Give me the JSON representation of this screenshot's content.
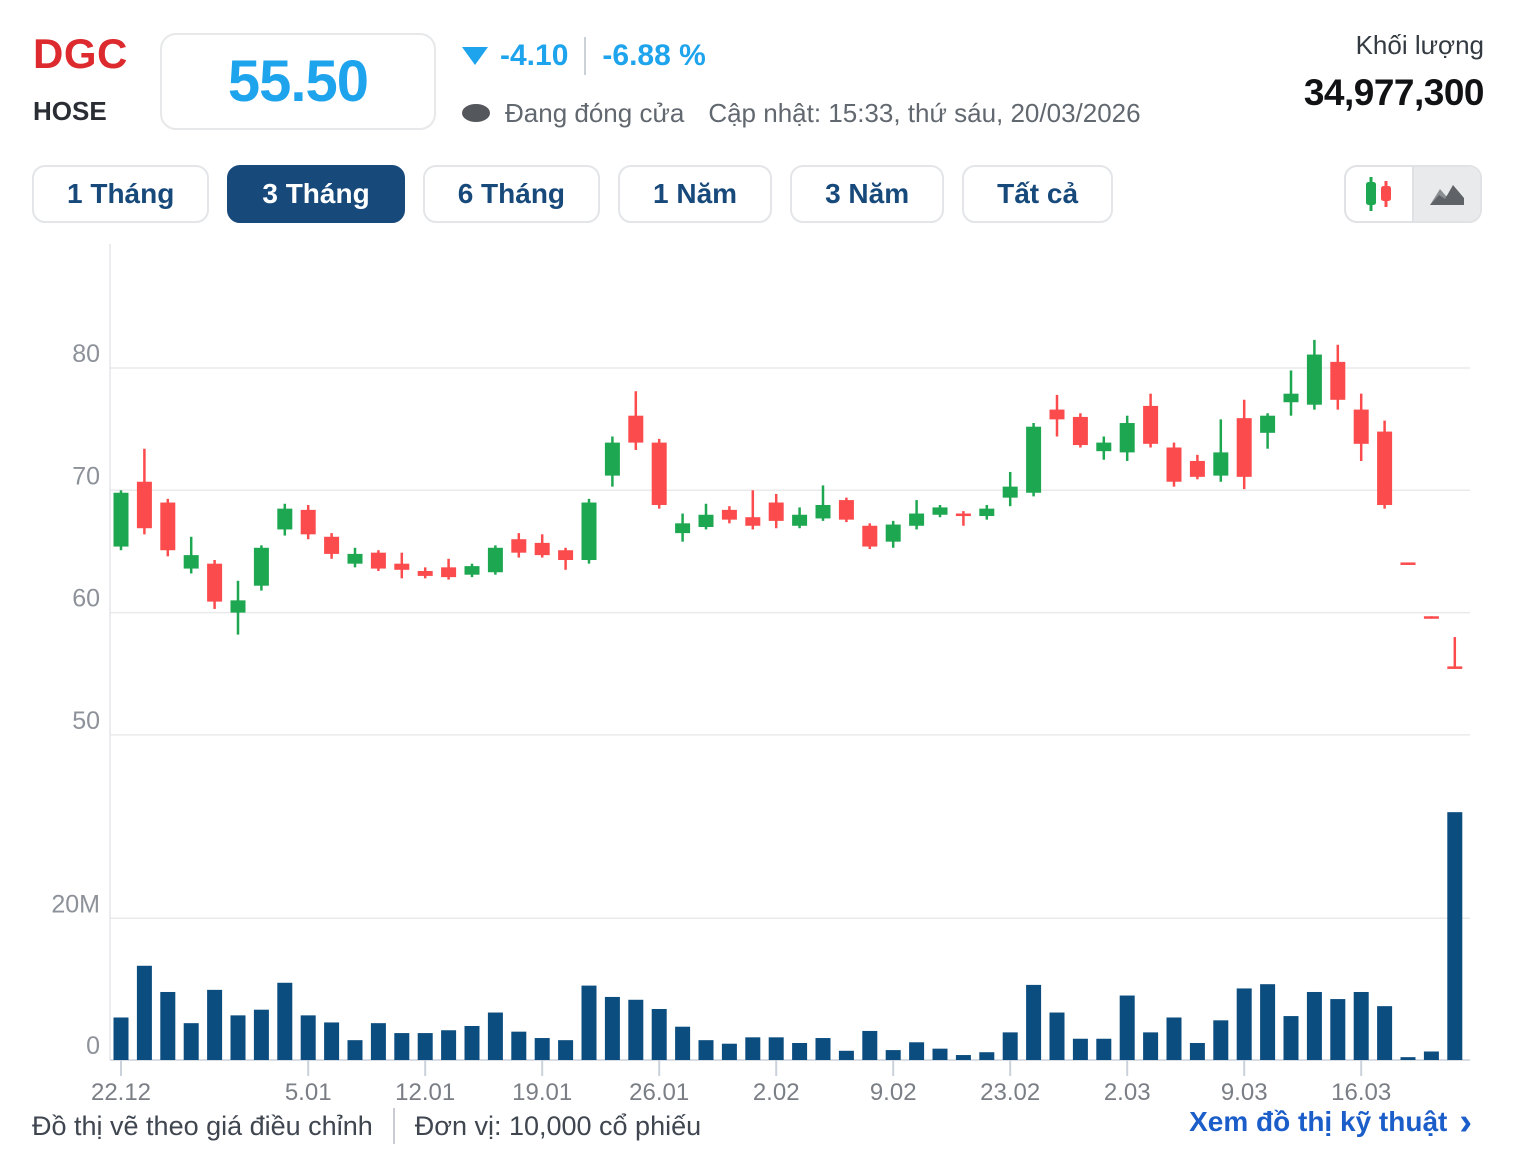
{
  "header": {
    "ticker": "DGC",
    "exchange": "HOSE",
    "price": "55.50",
    "change": "-4.10",
    "change_percent": "-6.88 %",
    "status": "Đang đóng cửa",
    "updated": "Cập nhật: 15:33, thứ sáu, 20/03/2026",
    "volume_label": "Khối lượng",
    "volume_value": "34,977,300"
  },
  "tabs": [
    {
      "label": "1 Tháng",
      "active": false
    },
    {
      "label": "3 Tháng",
      "active": true
    },
    {
      "label": "6 Tháng",
      "active": false
    },
    {
      "label": "1 Năm",
      "active": false
    },
    {
      "label": "3 Năm",
      "active": false
    },
    {
      "label": "Tất cả",
      "active": false
    }
  ],
  "chart_toggle": {
    "candlestick_selected": true,
    "area_selected": false
  },
  "footer": {
    "note": "Đồ thị vẽ theo giá điều chỉnh",
    "unit": "Đơn vị: 10,000 cổ phiếu",
    "link": "Xem đồ thị kỹ thuật",
    "chevron": "›"
  },
  "colors": {
    "ticker_red": "#dd2a2e",
    "price_blue": "#1ea3ed",
    "tab_navy": "#17497b",
    "candle_up": "#1da750",
    "candle_down": "#fb4b4c",
    "volume_bar": "#0c4d7f",
    "gridline": "#eaeaea",
    "axis_line": "#d7dce5",
    "tick_line": "#cbd1db",
    "y_label": "#8d9199",
    "x_label": "#7a7e85",
    "link_blue": "#1c5ec9"
  },
  "chart_data": {
    "type": "candlestick+volume",
    "price_axis": {
      "ticks": [
        80,
        70,
        60,
        50
      ],
      "range_note": "gridlines at 80/70/60/50"
    },
    "volume_axis": {
      "ticks_labels": [
        "20M",
        "0"
      ],
      "ticks_values": [
        20000000,
        0
      ]
    },
    "volume_unit_millions": true,
    "x_tick_labels": [
      {
        "index": 0,
        "label": "22.12"
      },
      {
        "index": 8,
        "label": "5.01"
      },
      {
        "index": 13,
        "label": "12.01"
      },
      {
        "index": 18,
        "label": "19.01"
      },
      {
        "index": 23,
        "label": "26.01"
      },
      {
        "index": 28,
        "label": "2.02"
      },
      {
        "index": 33,
        "label": "9.02"
      },
      {
        "index": 38,
        "label": "23.02"
      },
      {
        "index": 43,
        "label": "2.03"
      },
      {
        "index": 48,
        "label": "9.03"
      },
      {
        "index": 53,
        "label": "16.03"
      }
    ],
    "candles": [
      {
        "d": "22.12",
        "o": 65.4,
        "h": 70.0,
        "l": 65.1,
        "c": 69.8,
        "v": 6.0
      },
      {
        "d": "23.12",
        "o": 70.7,
        "h": 73.4,
        "l": 66.4,
        "c": 66.9,
        "v": 13.3
      },
      {
        "d": "24.12",
        "o": 69.0,
        "h": 69.3,
        "l": 64.6,
        "c": 65.1,
        "v": 9.6
      },
      {
        "d": "25.12",
        "o": 63.6,
        "h": 66.2,
        "l": 63.2,
        "c": 64.7,
        "v": 5.2
      },
      {
        "d": "26.12",
        "o": 64.0,
        "h": 64.3,
        "l": 60.3,
        "c": 60.9,
        "v": 9.9
      },
      {
        "d": "29.12",
        "o": 60.0,
        "h": 62.6,
        "l": 58.2,
        "c": 61.0,
        "v": 6.3
      },
      {
        "d": "30.12",
        "o": 62.2,
        "h": 65.5,
        "l": 61.8,
        "c": 65.3,
        "v": 7.1
      },
      {
        "d": "31.12",
        "o": 66.8,
        "h": 68.9,
        "l": 66.3,
        "c": 68.5,
        "v": 10.9
      },
      {
        "d": "5.01",
        "o": 68.4,
        "h": 68.8,
        "l": 66.0,
        "c": 66.4,
        "v": 6.3
      },
      {
        "d": "6.01",
        "o": 66.2,
        "h": 66.5,
        "l": 64.4,
        "c": 64.8,
        "v": 5.3
      },
      {
        "d": "7.01",
        "o": 64.0,
        "h": 65.3,
        "l": 63.7,
        "c": 64.8,
        "v": 2.8
      },
      {
        "d": "8.01",
        "o": 64.9,
        "h": 65.1,
        "l": 63.4,
        "c": 63.6,
        "v": 5.2
      },
      {
        "d": "9.01",
        "o": 64.0,
        "h": 64.9,
        "l": 62.8,
        "c": 63.5,
        "v": 3.8
      },
      {
        "d": "12.01",
        "o": 63.4,
        "h": 63.7,
        "l": 62.8,
        "c": 63.0,
        "v": 3.8
      },
      {
        "d": "13.01",
        "o": 63.7,
        "h": 64.4,
        "l": 62.7,
        "c": 62.9,
        "v": 4.2
      },
      {
        "d": "14.01",
        "o": 63.1,
        "h": 64.0,
        "l": 62.9,
        "c": 63.8,
        "v": 4.8
      },
      {
        "d": "15.01",
        "o": 63.3,
        "h": 65.5,
        "l": 63.1,
        "c": 65.3,
        "v": 6.7
      },
      {
        "d": "16.01",
        "o": 66.0,
        "h": 66.5,
        "l": 64.5,
        "c": 64.9,
        "v": 4.0
      },
      {
        "d": "19.01",
        "o": 65.7,
        "h": 66.4,
        "l": 64.5,
        "c": 64.7,
        "v": 3.1
      },
      {
        "d": "20.01",
        "o": 65.1,
        "h": 65.3,
        "l": 63.5,
        "c": 64.3,
        "v": 2.8
      },
      {
        "d": "21.01",
        "o": 64.3,
        "h": 69.3,
        "l": 64.0,
        "c": 69.0,
        "v": 10.5
      },
      {
        "d": "22.01",
        "o": 71.2,
        "h": 74.4,
        "l": 70.3,
        "c": 73.9,
        "v": 8.9
      },
      {
        "d": "23.01",
        "o": 76.1,
        "h": 78.1,
        "l": 73.3,
        "c": 73.9,
        "v": 8.5
      },
      {
        "d": "26.01",
        "o": 73.9,
        "h": 74.2,
        "l": 68.5,
        "c": 68.8,
        "v": 7.2
      },
      {
        "d": "27.01",
        "o": 66.5,
        "h": 68.1,
        "l": 65.8,
        "c": 67.3,
        "v": 4.7
      },
      {
        "d": "28.01",
        "o": 67.0,
        "h": 68.9,
        "l": 66.8,
        "c": 68.0,
        "v": 2.8
      },
      {
        "d": "29.01",
        "o": 68.4,
        "h": 68.7,
        "l": 67.3,
        "c": 67.6,
        "v": 2.3
      },
      {
        "d": "30.01",
        "o": 67.8,
        "h": 70.0,
        "l": 66.8,
        "c": 67.1,
        "v": 3.2
      },
      {
        "d": "2.02",
        "o": 69.0,
        "h": 69.7,
        "l": 66.9,
        "c": 67.5,
        "v": 3.2
      },
      {
        "d": "3.02",
        "o": 67.1,
        "h": 68.6,
        "l": 66.9,
        "c": 68.0,
        "v": 2.4
      },
      {
        "d": "4.02",
        "o": 67.7,
        "h": 70.4,
        "l": 67.5,
        "c": 68.8,
        "v": 3.1
      },
      {
        "d": "5.02",
        "o": 69.2,
        "h": 69.4,
        "l": 67.4,
        "c": 67.6,
        "v": 1.3
      },
      {
        "d": "6.02",
        "o": 67.1,
        "h": 67.3,
        "l": 65.2,
        "c": 65.4,
        "v": 4.1
      },
      {
        "d": "9.02",
        "o": 65.8,
        "h": 67.5,
        "l": 65.3,
        "c": 67.2,
        "v": 1.4
      },
      {
        "d": "10.02",
        "o": 67.1,
        "h": 69.2,
        "l": 66.8,
        "c": 68.1,
        "v": 2.5
      },
      {
        "d": "11.02",
        "o": 68.0,
        "h": 68.8,
        "l": 67.8,
        "c": 68.6,
        "v": 1.6
      },
      {
        "d": "12.02",
        "o": 68.1,
        "h": 68.3,
        "l": 67.1,
        "c": 67.9,
        "v": 0.7
      },
      {
        "d": "13.02",
        "o": 67.9,
        "h": 68.8,
        "l": 67.6,
        "c": 68.5,
        "v": 1.1
      },
      {
        "d": "23.02",
        "o": 69.4,
        "h": 71.5,
        "l": 68.7,
        "c": 70.3,
        "v": 3.9
      },
      {
        "d": "24.02",
        "o": 69.8,
        "h": 75.5,
        "l": 69.5,
        "c": 75.2,
        "v": 10.6
      },
      {
        "d": "25.02",
        "o": 76.6,
        "h": 77.8,
        "l": 74.4,
        "c": 75.8,
        "v": 6.7
      },
      {
        "d": "26.02",
        "o": 76.0,
        "h": 76.3,
        "l": 73.5,
        "c": 73.7,
        "v": 3.0
      },
      {
        "d": "27.02",
        "o": 73.2,
        "h": 74.4,
        "l": 72.5,
        "c": 73.9,
        "v": 3.0
      },
      {
        "d": "2.03",
        "o": 73.1,
        "h": 76.1,
        "l": 72.4,
        "c": 75.5,
        "v": 9.1
      },
      {
        "d": "3.03",
        "o": 76.9,
        "h": 77.9,
        "l": 73.5,
        "c": 73.8,
        "v": 3.9
      },
      {
        "d": "4.03",
        "o": 73.5,
        "h": 73.9,
        "l": 70.3,
        "c": 70.7,
        "v": 6.0
      },
      {
        "d": "5.03",
        "o": 72.4,
        "h": 72.9,
        "l": 70.9,
        "c": 71.1,
        "v": 2.4
      },
      {
        "d": "6.03",
        "o": 71.2,
        "h": 75.8,
        "l": 70.7,
        "c": 73.1,
        "v": 5.6
      },
      {
        "d": "9.03",
        "o": 75.9,
        "h": 77.4,
        "l": 70.1,
        "c": 71.1,
        "v": 10.1
      },
      {
        "d": "10.03",
        "o": 74.7,
        "h": 76.3,
        "l": 73.4,
        "c": 76.1,
        "v": 10.7
      },
      {
        "d": "11.03",
        "o": 77.2,
        "h": 79.8,
        "l": 76.1,
        "c": 77.9,
        "v": 6.2
      },
      {
        "d": "12.03",
        "o": 77.0,
        "h": 82.3,
        "l": 76.6,
        "c": 81.1,
        "v": 9.6
      },
      {
        "d": "13.03",
        "o": 80.5,
        "h": 81.9,
        "l": 76.6,
        "c": 77.4,
        "v": 8.6
      },
      {
        "d": "16.03",
        "o": 76.6,
        "h": 77.9,
        "l": 72.4,
        "c": 73.8,
        "v": 9.6
      },
      {
        "d": "17.03",
        "o": 74.8,
        "h": 75.7,
        "l": 68.5,
        "c": 68.8,
        "v": 7.6
      },
      {
        "d": "18.03",
        "o": 64.1,
        "h": 64.1,
        "l": 63.9,
        "c": 64.0,
        "v": 0.4
      },
      {
        "d": "19.03",
        "o": 59.7,
        "h": 59.7,
        "l": 59.5,
        "c": 59.6,
        "v": 1.2
      },
      {
        "d": "20.03",
        "o": 55.6,
        "h": 58.0,
        "l": 55.4,
        "c": 55.5,
        "v": 34.98
      }
    ]
  }
}
